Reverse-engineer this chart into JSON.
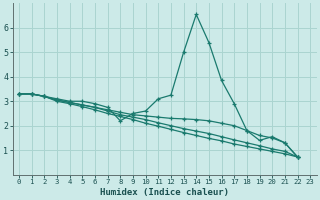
{
  "xlabel": "Humidex (Indice chaleur)",
  "bg_color": "#cceae8",
  "grid_color": "#aad4d0",
  "line_color": "#1a7a6e",
  "xlim": [
    -0.5,
    23.5
  ],
  "ylim": [
    0,
    7
  ],
  "xticks": [
    0,
    1,
    2,
    3,
    4,
    5,
    6,
    7,
    8,
    9,
    10,
    11,
    12,
    13,
    14,
    15,
    16,
    17,
    18,
    19,
    20,
    21,
    22,
    23
  ],
  "yticks": [
    1,
    2,
    3,
    4,
    5,
    6
  ],
  "lines": [
    {
      "x": [
        0,
        1,
        2,
        3,
        4,
        5,
        6,
        7,
        8,
        9,
        10,
        11,
        12,
        13,
        14,
        15,
        16,
        17,
        18,
        19,
        20,
        21,
        22
      ],
      "y": [
        3.3,
        3.3,
        3.2,
        3.1,
        3.0,
        3.0,
        2.9,
        2.75,
        2.2,
        2.5,
        2.6,
        3.1,
        3.25,
        5.0,
        6.55,
        5.4,
        3.85,
        2.9,
        1.8,
        1.4,
        1.55,
        1.3,
        0.72
      ]
    },
    {
      "x": [
        0,
        1,
        2,
        3,
        4,
        5,
        6,
        7,
        8,
        9,
        10,
        11,
        12,
        13,
        14,
        15,
        16,
        17,
        18,
        19,
        20,
        21,
        22
      ],
      "y": [
        3.3,
        3.3,
        3.2,
        3.05,
        2.95,
        2.85,
        2.75,
        2.65,
        2.55,
        2.45,
        2.4,
        2.35,
        2.3,
        2.28,
        2.25,
        2.2,
        2.1,
        2.0,
        1.8,
        1.6,
        1.5,
        1.3,
        0.72
      ]
    },
    {
      "x": [
        0,
        1,
        2,
        3,
        4,
        5,
        6,
        7,
        8,
        9,
        10,
        11,
        12,
        13,
        14,
        15,
        16,
        17,
        18,
        19,
        20,
        21,
        22
      ],
      "y": [
        3.3,
        3.3,
        3.2,
        3.05,
        2.95,
        2.85,
        2.75,
        2.6,
        2.45,
        2.35,
        2.25,
        2.12,
        2.0,
        1.88,
        1.78,
        1.68,
        1.55,
        1.42,
        1.3,
        1.18,
        1.05,
        0.95,
        0.72
      ]
    },
    {
      "x": [
        0,
        1,
        2,
        3,
        4,
        5,
        6,
        7,
        8,
        9,
        10,
        11,
        12,
        13,
        14,
        15,
        16,
        17,
        18,
        19,
        20,
        21,
        22
      ],
      "y": [
        3.3,
        3.3,
        3.2,
        3.0,
        2.9,
        2.78,
        2.65,
        2.5,
        2.38,
        2.25,
        2.1,
        1.98,
        1.85,
        1.72,
        1.6,
        1.48,
        1.38,
        1.25,
        1.15,
        1.05,
        0.95,
        0.85,
        0.72
      ]
    }
  ]
}
